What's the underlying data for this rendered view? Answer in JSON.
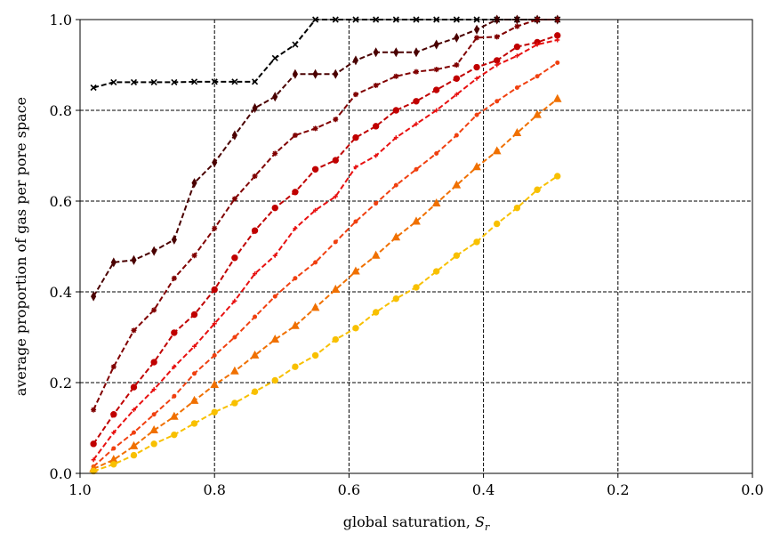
{
  "chart_data": {
    "type": "line",
    "xlabel": {
      "text": "global saturation, ",
      "symbol": "S",
      "subscript": "r"
    },
    "ylabel": "average proportion of gas per pore space",
    "x": [
      0.98,
      0.95,
      0.92,
      0.89,
      0.86,
      0.83,
      0.8,
      0.77,
      0.74,
      0.71,
      0.68,
      0.65,
      0.62,
      0.59,
      0.56,
      0.53,
      0.5,
      0.47,
      0.44,
      0.41,
      0.38,
      0.35,
      0.32,
      0.29
    ],
    "series": [
      {
        "color": "#000000",
        "marker": "x",
        "values": [
          0.85,
          0.862,
          0.862,
          0.862,
          0.862,
          0.863,
          0.863,
          0.863,
          0.863,
          0.915,
          0.945,
          1.0,
          1.0,
          1.0,
          1.0,
          1.0,
          1.0,
          1.0,
          1.0,
          1.0,
          1.0,
          1.0,
          1.0,
          1.0
        ]
      },
      {
        "color": "#4a0000",
        "marker": "diamond",
        "values": [
          0.39,
          0.465,
          0.47,
          0.49,
          0.515,
          0.64,
          0.685,
          0.745,
          0.805,
          0.83,
          0.88,
          0.88,
          0.88,
          0.91,
          0.928,
          0.928,
          0.928,
          0.945,
          0.96,
          0.978,
          1.0,
          1.0,
          1.0,
          1.0
        ]
      },
      {
        "color": "#800000",
        "marker": "star",
        "values": [
          0.14,
          0.235,
          0.315,
          0.36,
          0.43,
          0.48,
          0.54,
          0.605,
          0.655,
          0.705,
          0.745,
          0.76,
          0.78,
          0.835,
          0.855,
          0.875,
          0.885,
          0.89,
          0.9,
          0.96,
          0.962,
          0.985,
          1.0,
          1.0
        ]
      },
      {
        "color": "#c00000",
        "marker": "circle",
        "values": [
          0.065,
          0.13,
          0.19,
          0.245,
          0.31,
          0.35,
          0.405,
          0.475,
          0.535,
          0.585,
          0.62,
          0.67,
          0.69,
          0.74,
          0.765,
          0.8,
          0.82,
          0.845,
          0.87,
          0.895,
          0.91,
          0.94,
          0.95,
          0.965
        ]
      },
      {
        "color": "#e81010",
        "marker": "plus",
        "values": [
          0.03,
          0.09,
          0.14,
          0.185,
          0.235,
          0.28,
          0.33,
          0.38,
          0.44,
          0.48,
          0.54,
          0.58,
          0.61,
          0.675,
          0.7,
          0.74,
          0.77,
          0.8,
          0.835,
          0.87,
          0.9,
          0.92,
          0.945,
          0.955
        ]
      },
      {
        "color": "#f04010",
        "marker": "point",
        "values": [
          0.015,
          0.055,
          0.09,
          0.13,
          0.17,
          0.22,
          0.26,
          0.3,
          0.345,
          0.39,
          0.43,
          0.465,
          0.51,
          0.555,
          0.595,
          0.635,
          0.67,
          0.705,
          0.745,
          0.79,
          0.82,
          0.85,
          0.875,
          0.905
        ]
      },
      {
        "color": "#f07000",
        "marker": "triangle",
        "values": [
          0.01,
          0.03,
          0.06,
          0.095,
          0.125,
          0.16,
          0.195,
          0.225,
          0.26,
          0.295,
          0.325,
          0.365,
          0.405,
          0.445,
          0.48,
          0.52,
          0.555,
          0.595,
          0.635,
          0.675,
          0.71,
          0.75,
          0.79,
          0.825
        ]
      },
      {
        "color": "#f8c000",
        "marker": "circle",
        "values": [
          0.005,
          0.02,
          0.04,
          0.065,
          0.085,
          0.11,
          0.135,
          0.155,
          0.18,
          0.205,
          0.235,
          0.26,
          0.295,
          0.32,
          0.355,
          0.385,
          0.41,
          0.445,
          0.48,
          0.51,
          0.55,
          0.585,
          0.625,
          0.655
        ]
      }
    ],
    "xlim": [
      1,
      0
    ],
    "xticks": [
      {
        "value": 1,
        "label": "1.0"
      },
      0.8,
      0.6,
      0.4,
      0.2,
      {
        "value": 0,
        "label": "0.0"
      }
    ],
    "ylim": [
      0,
      1
    ],
    "yticks": [
      {
        "value": 0,
        "label": "0.0"
      },
      0.2,
      0.4,
      0.6,
      0.8,
      {
        "value": 1,
        "label": "1.0"
      }
    ],
    "grid": true
  }
}
